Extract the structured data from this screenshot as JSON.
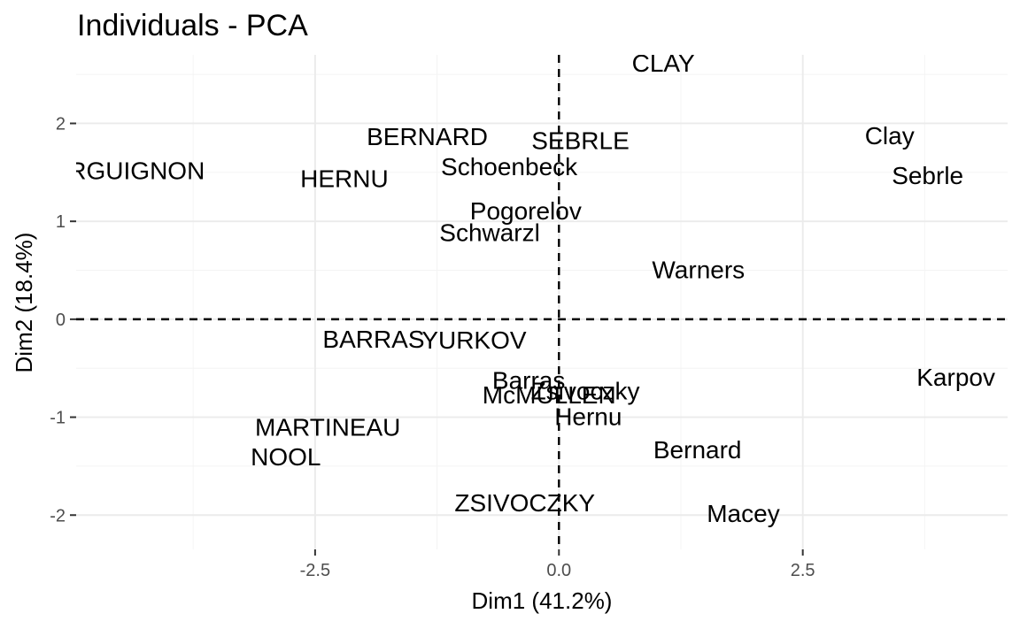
{
  "chart_data": {
    "type": "scatter",
    "title": "Individuals - PCA",
    "xlabel": "Dim1 (41.2%)",
    "ylabel": "Dim2 (18.4%)",
    "xlim": [
      -4.95,
      4.6
    ],
    "ylim": [
      -2.35,
      2.7
    ],
    "xticks": [
      -2.5,
      0.0,
      2.5
    ],
    "xtick_labels": [
      "-2.5",
      "0.0",
      "2.5"
    ],
    "yticks": [
      -2,
      -1,
      0,
      1,
      2
    ],
    "ytick_labels": [
      "-2",
      "-1",
      "0",
      "1",
      "2"
    ],
    "reference_lines": {
      "x": 0,
      "y": 0,
      "style": "dashed"
    },
    "grid": true,
    "points": [
      {
        "label": "CLAY",
        "x": 1.07,
        "y": 2.62
      },
      {
        "label": "BERNARD",
        "x": -1.35,
        "y": 1.87
      },
      {
        "label": "SEBRLE",
        "x": 0.22,
        "y": 1.83
      },
      {
        "label": "Clay",
        "x": 3.39,
        "y": 1.88
      },
      {
        "label": "RGUIGNON",
        "x": -4.33,
        "y": 1.52
      },
      {
        "label": "Schoenbeck",
        "x": -0.51,
        "y": 1.56
      },
      {
        "label": "HERNU",
        "x": -2.2,
        "y": 1.44
      },
      {
        "label": "Sebrle",
        "x": 3.78,
        "y": 1.47
      },
      {
        "label": "Pogorelov",
        "x": -0.34,
        "y": 1.11
      },
      {
        "label": "Schwarzl",
        "x": -0.71,
        "y": 0.89
      },
      {
        "label": "Warners",
        "x": 1.43,
        "y": 0.51
      },
      {
        "label": "BARRAS",
        "x": -1.9,
        "y": -0.2
      },
      {
        "label": "YURKOV",
        "x": -0.87,
        "y": -0.21
      },
      {
        "label": "Karpov",
        "x": 4.07,
        "y": -0.59
      },
      {
        "label": "Barras",
        "x": -0.31,
        "y": -0.62
      },
      {
        "label": "Zsivoczky",
        "x": 0.27,
        "y": -0.73
      },
      {
        "label": "McMULLEN",
        "x": -0.1,
        "y": -0.77
      },
      {
        "label": "Hernu",
        "x": 0.3,
        "y": -0.99
      },
      {
        "label": "MARTINEAU",
        "x": -2.37,
        "y": -1.1
      },
      {
        "label": "Bernard",
        "x": 1.42,
        "y": -1.33
      },
      {
        "label": "NOOL",
        "x": -2.8,
        "y": -1.4
      },
      {
        "label": "ZSIVOCZKY",
        "x": -0.35,
        "y": -1.87
      },
      {
        "label": "Macey",
        "x": 1.89,
        "y": -1.98
      }
    ]
  }
}
